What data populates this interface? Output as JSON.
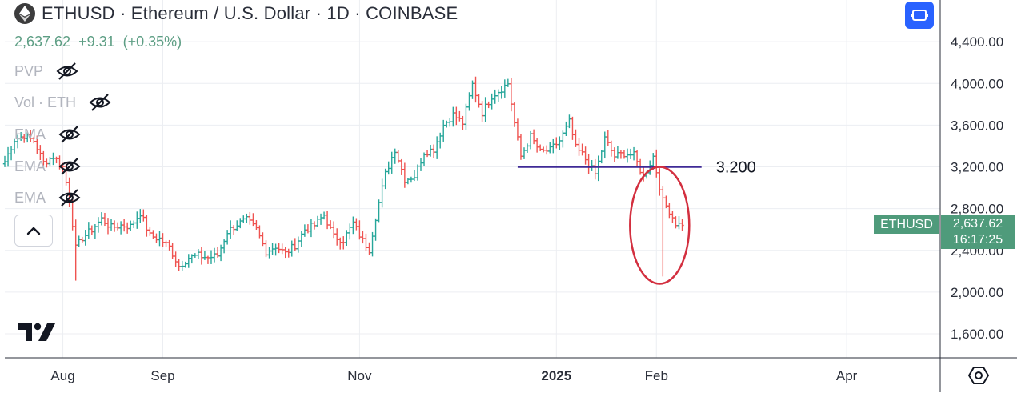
{
  "header": {
    "title": "ETHUSD · Ethereum / U.S. Dollar · 1D · COINBASE",
    "price": "2,637.62",
    "change": "+9.31",
    "change_pct": "(+0.35%)"
  },
  "indicators": [
    {
      "label": "PVP",
      "icon": "eye-off-icon"
    },
    {
      "label": "Vol · ETH",
      "icon": "eye-off-icon"
    },
    {
      "label": "EMA",
      "icon": "eye-off-icon"
    },
    {
      "label": "EMA",
      "icon": "eye-off-icon"
    },
    {
      "label": "EMA",
      "icon": "eye-off-icon"
    }
  ],
  "badge": {
    "symbol": "ETHUSD",
    "price": "2,637.62",
    "countdown": "16:17:25"
  },
  "colors": {
    "up": "#26a69a",
    "down": "#ef5350",
    "level_line": "#3f2a96",
    "circle": "#d32f3f",
    "accent": "#2962ff"
  },
  "chart_data": {
    "type": "ohlc",
    "symbol": "ETHUSD",
    "interval": "1D",
    "y_ticks": [
      "1,600.00",
      "2,000.00",
      "2,400.00",
      "2,800.00",
      "3,200.00",
      "3,600.00",
      "4,000.00",
      "4,400.00"
    ],
    "y_tick_values": [
      1600,
      2000,
      2400,
      2800,
      3200,
      3600,
      4000,
      4400
    ],
    "ylim": [
      1370,
      4800
    ],
    "x_ticks": [
      "Aug",
      "Sep",
      "Nov",
      "2025",
      "Feb",
      "Apr"
    ],
    "x_tick_dates": [
      "2024-08-01",
      "2024-09-01",
      "2024-11-01",
      "2025-01-01",
      "2025-02-01",
      "2025-04-01"
    ],
    "x_start": "2024-07-14",
    "x_end": "2025-04-30",
    "series": [
      {
        "values": [
          {
            "date": "2024-07-14",
            "close": 3250
          },
          {
            "date": "2024-07-17",
            "close": 3460
          },
          {
            "date": "2024-07-20",
            "close": 3500
          },
          {
            "date": "2024-07-23",
            "close": 3450
          },
          {
            "date": "2024-07-26",
            "close": 3240
          },
          {
            "date": "2024-07-29",
            "close": 3300
          },
          {
            "date": "2024-08-01",
            "close": 3200
          },
          {
            "date": "2024-08-03",
            "close": 2900
          },
          {
            "date": "2024-08-05",
            "close": 2420
          },
          {
            "date": "2024-08-07",
            "close": 2520
          },
          {
            "date": "2024-08-10",
            "close": 2600
          },
          {
            "date": "2024-08-13",
            "close": 2700
          },
          {
            "date": "2024-08-16",
            "close": 2620
          },
          {
            "date": "2024-08-19",
            "close": 2640
          },
          {
            "date": "2024-08-22",
            "close": 2630
          },
          {
            "date": "2024-08-25",
            "close": 2760
          },
          {
            "date": "2024-08-28",
            "close": 2540
          },
          {
            "date": "2024-08-31",
            "close": 2510
          },
          {
            "date": "2024-09-03",
            "close": 2430
          },
          {
            "date": "2024-09-06",
            "close": 2250
          },
          {
            "date": "2024-09-09",
            "close": 2330
          },
          {
            "date": "2024-09-12",
            "close": 2350
          },
          {
            "date": "2024-09-15",
            "close": 2330
          },
          {
            "date": "2024-09-18",
            "close": 2350
          },
          {
            "date": "2024-09-21",
            "close": 2580
          },
          {
            "date": "2024-09-24",
            "close": 2650
          },
          {
            "date": "2024-09-27",
            "close": 2690
          },
          {
            "date": "2024-09-30",
            "close": 2600
          },
          {
            "date": "2024-10-03",
            "close": 2390
          },
          {
            "date": "2024-10-06",
            "close": 2440
          },
          {
            "date": "2024-10-09",
            "close": 2370
          },
          {
            "date": "2024-10-12",
            "close": 2450
          },
          {
            "date": "2024-10-15",
            "close": 2600
          },
          {
            "date": "2024-10-18",
            "close": 2640
          },
          {
            "date": "2024-10-21",
            "close": 2740
          },
          {
            "date": "2024-10-24",
            "close": 2530
          },
          {
            "date": "2024-10-27",
            "close": 2500
          },
          {
            "date": "2024-10-30",
            "close": 2660
          },
          {
            "date": "2024-11-02",
            "close": 2490
          },
          {
            "date": "2024-11-04",
            "close": 2410
          },
          {
            "date": "2024-11-06",
            "close": 2720
          },
          {
            "date": "2024-11-09",
            "close": 3130
          },
          {
            "date": "2024-11-12",
            "close": 3370
          },
          {
            "date": "2024-11-15",
            "close": 3080
          },
          {
            "date": "2024-11-18",
            "close": 3110
          },
          {
            "date": "2024-11-21",
            "close": 3340
          },
          {
            "date": "2024-11-24",
            "close": 3370
          },
          {
            "date": "2024-11-27",
            "close": 3600
          },
          {
            "date": "2024-11-30",
            "close": 3700
          },
          {
            "date": "2024-12-03",
            "close": 3620
          },
          {
            "date": "2024-12-06",
            "close": 3990
          },
          {
            "date": "2024-12-09",
            "close": 3720
          },
          {
            "date": "2024-12-12",
            "close": 3880
          },
          {
            "date": "2024-12-15",
            "close": 3950
          },
          {
            "date": "2024-12-17",
            "close": 4000
          },
          {
            "date": "2024-12-19",
            "close": 3620
          },
          {
            "date": "2024-12-21",
            "close": 3300
          },
          {
            "date": "2024-12-24",
            "close": 3490
          },
          {
            "date": "2024-12-27",
            "close": 3340
          },
          {
            "date": "2024-12-30",
            "close": 3360
          },
          {
            "date": "2025-01-02",
            "close": 3450
          },
          {
            "date": "2025-01-05",
            "close": 3630
          },
          {
            "date": "2025-01-07",
            "close": 3380
          },
          {
            "date": "2025-01-09",
            "close": 3320
          },
          {
            "date": "2025-01-13",
            "close": 3130
          },
          {
            "date": "2025-01-16",
            "close": 3470
          },
          {
            "date": "2025-01-19",
            "close": 3300
          },
          {
            "date": "2025-01-22",
            "close": 3330
          },
          {
            "date": "2025-01-25",
            "close": 3310
          },
          {
            "date": "2025-01-28",
            "close": 3100
          },
          {
            "date": "2025-01-31",
            "close": 3300
          },
          {
            "date": "2025-02-03",
            "close": 2870
          },
          {
            "date": "2025-02-05",
            "close": 2780
          },
          {
            "date": "2025-02-07",
            "close": 2660
          },
          {
            "date": "2025-02-09",
            "close": 2640
          }
        ]
      }
    ],
    "annotations": [
      {
        "type": "horizontal_line",
        "value": 3200,
        "x_from": "2024-12-20",
        "x_to": "2025-02-15",
        "label": "3.200"
      },
      {
        "type": "ellipse",
        "x_center": "2025-02-02",
        "y_center": 2640,
        "note": "red circle"
      }
    ]
  }
}
